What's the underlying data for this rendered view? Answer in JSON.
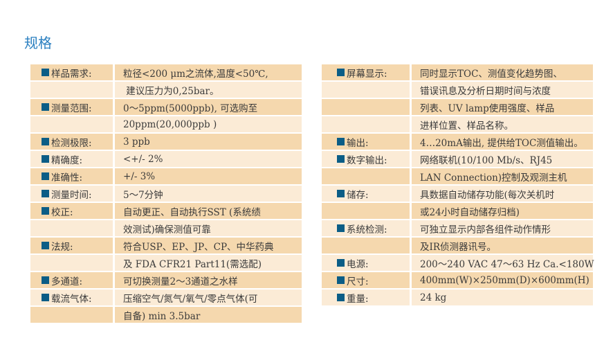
{
  "title": "规格",
  "colors": {
    "row_dark": "#f5d8ae",
    "row_light": "#fbebd6",
    "bullet": "#0b5d86",
    "title": "#2a7fc0"
  },
  "left": [
    {
      "label": "样品需求:",
      "value": "粒径<200 μm之流体,温度<50℃,"
    },
    {
      "label": "",
      "value": " 建议压力为0,25bar。"
    },
    {
      "label": "测量范围:",
      "value": "0～5ppm(5000ppb), 可选购至"
    },
    {
      "label": "",
      "value": "20ppm(20,000ppb )"
    },
    {
      "label": "检测极限:",
      "value": "3 ppb"
    },
    {
      "label": "精确度:",
      "value": "<+/- 2%"
    },
    {
      "label": "准确性:",
      "value": "+/- 3%"
    },
    {
      "label": "测量时间:",
      "value": "5～7分钟"
    },
    {
      "label": "校正:",
      "value": "自动更正、自动执行SST (系统绩"
    },
    {
      "label": "",
      "value": "效测试)确保测值可靠"
    },
    {
      "label": "法规:",
      "value": "符合USP、EP、JP、CP、中华药典"
    },
    {
      "label": "",
      "value": "及 FDA CFR21 Part11(需选配)"
    },
    {
      "label": "多通道:",
      "value": "可切换测量2～3通道之水样"
    },
    {
      "label": "载流气体:",
      "value": "压缩空气/氮气/氧气/零点气体(可"
    },
    {
      "label": "",
      "value": "自备) min 3.5bar"
    }
  ],
  "right": [
    {
      "label": "屏幕显示:",
      "value": "同时显示TOC、测值变化趋势图、"
    },
    {
      "label": "",
      "value": "错误讯息及分析日期时间与浓度"
    },
    {
      "label": "",
      "value": "列表、UV lamp使用强度、样品"
    },
    {
      "label": "",
      "value": "进样位置、样品名称。"
    },
    {
      "label": "输出:",
      "value": "4…20mA输出, 提供给TOC测值输出。"
    },
    {
      "label": "数字输出:",
      "value": "网络联机(10/100 Mb/s、RJ45"
    },
    {
      "label": "",
      "value": "LAN Connection)控制及观测主机"
    },
    {
      "label": "储存:",
      "value": "具数据自动储存功能(每次关机时"
    },
    {
      "label": "",
      "value": "或24小时自动储存归档)"
    },
    {
      "label": "系统检测:",
      "value": "可独立显示内部各组件动作情形"
    },
    {
      "label": "",
      "value": "及IR侦测器讯号。"
    },
    {
      "label": "电源:",
      "value": "200～240 VAC 47～63 Hz Ca.<180W"
    },
    {
      "label": "尺寸:",
      "value": "400mm(W)×250mm(D)×600mm(H)"
    },
    {
      "label": "重量:",
      "value": "24 kg"
    }
  ]
}
